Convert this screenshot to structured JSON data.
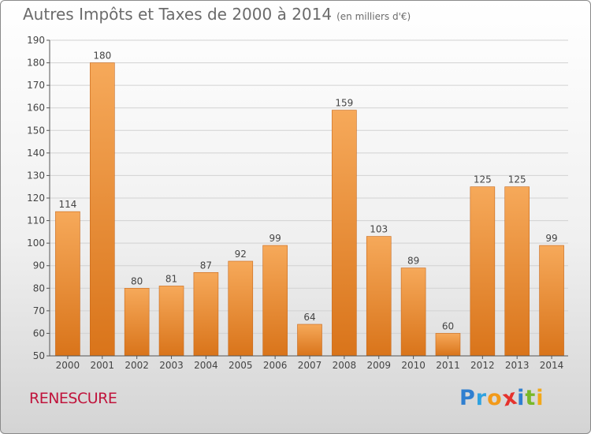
{
  "title": "Autres Impôts et Taxes de 2000 à 2014",
  "unit": "(en milliers d'€)",
  "commune": "RENESCURE",
  "logo": {
    "text": "Proxiti",
    "letters": [
      {
        "ch": "P",
        "color": "#2f7fd0"
      },
      {
        "ch": "r",
        "color": "#2fa2e0"
      },
      {
        "ch": "o",
        "color": "#f29a1a"
      },
      {
        "ch": "x",
        "color": "#e5322d"
      },
      {
        "ch": "i",
        "color": "#2f7fd0"
      },
      {
        "ch": "t",
        "color": "#79b829"
      },
      {
        "ch": "i",
        "color": "#f2a81a"
      }
    ]
  },
  "chart_data": {
    "type": "bar",
    "title": "Autres Impôts et Taxes de 2000 à 2014",
    "subtitle": "(en milliers d'€)",
    "categories": [
      "2000",
      "2001",
      "2002",
      "2003",
      "2004",
      "2005",
      "2006",
      "2007",
      "2008",
      "2009",
      "2010",
      "2011",
      "2012",
      "2013",
      "2014"
    ],
    "values": [
      114,
      180,
      80,
      81,
      87,
      92,
      99,
      64,
      159,
      103,
      89,
      60,
      125,
      125,
      99
    ],
    "ylim": [
      50,
      190
    ],
    "yticks": [
      50,
      60,
      70,
      80,
      90,
      100,
      110,
      120,
      130,
      140,
      150,
      160,
      170,
      180,
      190
    ],
    "grid": true,
    "bar_color": "#f08a24"
  }
}
